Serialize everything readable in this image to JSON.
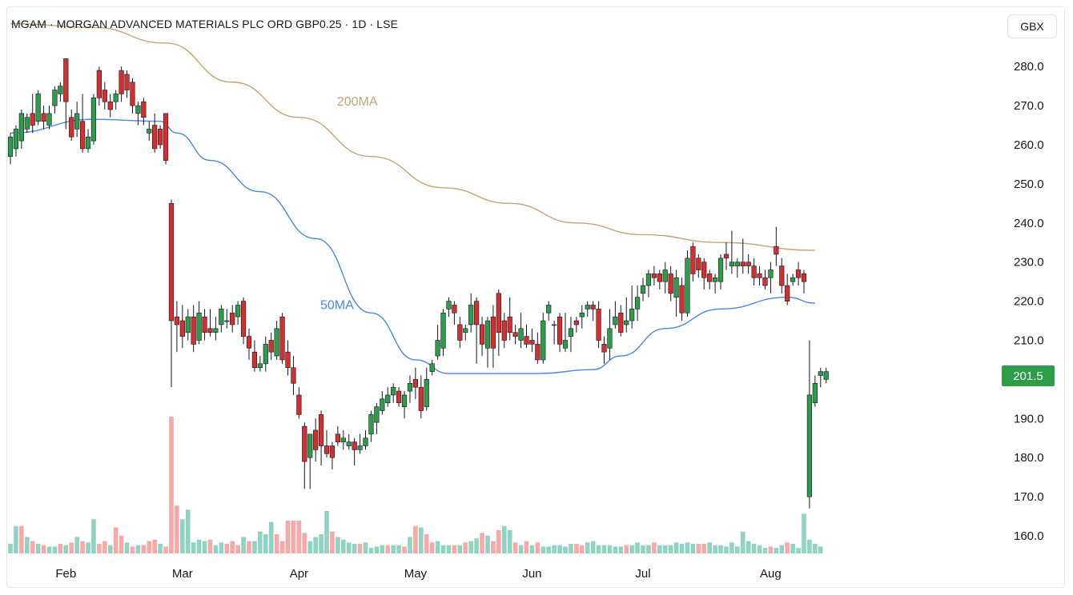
{
  "header": {
    "title": "MGAM · MORGAN ADVANCED MATERIALS PLC ORD GBP0.25 · 1D · LSE",
    "currency": "GBX",
    "last_price": "201.5"
  },
  "colors": {
    "up": "#2e9d4a",
    "down": "#d32f2f",
    "volume_up": "#8fd3c3",
    "volume_down": "#f7a9a8",
    "ma50": "#4a86e8",
    "ma200": "#c8a474"
  },
  "chart_data": {
    "type": "candlestick",
    "ylim": [
      156,
      288
    ],
    "y_ticks": [
      "160.0",
      "170.0",
      "180.0",
      "190.0",
      "200.0",
      "210.0",
      "220.0",
      "230.0",
      "240.0",
      "250.0",
      "260.0",
      "270.0",
      "280.0"
    ],
    "x_labels": [
      {
        "label": "Feb",
        "index": 10
      },
      {
        "label": "Mar",
        "index": 31
      },
      {
        "label": "Apr",
        "index": 52
      },
      {
        "label": "May",
        "index": 73
      },
      {
        "label": "Jun",
        "index": 94
      },
      {
        "label": "Jul",
        "index": 114
      },
      {
        "label": "Aug",
        "index": 137
      }
    ],
    "moving_averages": [
      {
        "name": "200MA",
        "label_index": 60,
        "points": [
          [
            0,
            291
          ],
          [
            15,
            290
          ],
          [
            28,
            286
          ],
          [
            40,
            276
          ],
          [
            52,
            267
          ],
          [
            65,
            257
          ],
          [
            78,
            249
          ],
          [
            90,
            245
          ],
          [
            102,
            240
          ],
          [
            114,
            237
          ],
          [
            128,
            235
          ],
          [
            145,
            233
          ]
        ]
      },
      {
        "name": "50MA",
        "label_index": 57,
        "points": [
          [
            0,
            263
          ],
          [
            15,
            266.5
          ],
          [
            27,
            266
          ],
          [
            30,
            263
          ],
          [
            36,
            256
          ],
          [
            45,
            248
          ],
          [
            55,
            236
          ],
          [
            65,
            217
          ],
          [
            73,
            205
          ],
          [
            79,
            201.5
          ],
          [
            87,
            201.5
          ],
          [
            95,
            201.5
          ],
          [
            105,
            202.5
          ],
          [
            110,
            206
          ],
          [
            118,
            213
          ],
          [
            128,
            218
          ],
          [
            140,
            221
          ],
          [
            145,
            219.5
          ]
        ]
      }
    ],
    "candles": [
      [
        257,
        262,
        255,
        263
      ],
      [
        259,
        264,
        257,
        265
      ],
      [
        261,
        268,
        259,
        269
      ],
      [
        264,
        267,
        263,
        268
      ],
      [
        268,
        265,
        263,
        273
      ],
      [
        266,
        273,
        265,
        274
      ],
      [
        268,
        266,
        264,
        270
      ],
      [
        265,
        268,
        264,
        270
      ],
      [
        270,
        274,
        268,
        275
      ],
      [
        273,
        275,
        271,
        276
      ],
      [
        282,
        271,
        264,
        282
      ],
      [
        267,
        262,
        261,
        269
      ],
      [
        264,
        268,
        262,
        271
      ],
      [
        266,
        259,
        258,
        273
      ],
      [
        259,
        262,
        258,
        264
      ],
      [
        261,
        272,
        260,
        273
      ],
      [
        279,
        272,
        270,
        280
      ],
      [
        274,
        271,
        269,
        276
      ],
      [
        271,
        269,
        267,
        273
      ],
      [
        271,
        273,
        269,
        274
      ],
      [
        279,
        273,
        271,
        280
      ],
      [
        278,
        274,
        272,
        279
      ],
      [
        276,
        270,
        268,
        277
      ],
      [
        268,
        270,
        265,
        271
      ],
      [
        271,
        267,
        265,
        272
      ],
      [
        263,
        264,
        261,
        266
      ],
      [
        265,
        259,
        258,
        268
      ],
      [
        264,
        260,
        259,
        265
      ],
      [
        268,
        256,
        255,
        268
      ],
      [
        245,
        215,
        198,
        246
      ],
      [
        216,
        214,
        207,
        220
      ],
      [
        215,
        211,
        208,
        219
      ],
      [
        212,
        216,
        210,
        218
      ],
      [
        216,
        209,
        207,
        219
      ],
      [
        210,
        217,
        209,
        220
      ],
      [
        216,
        212,
        210,
        218
      ],
      [
        213,
        212,
        211,
        218
      ],
      [
        212,
        213,
        210,
        216
      ],
      [
        214,
        218,
        212,
        219
      ],
      [
        215,
        215,
        213,
        218
      ],
      [
        217,
        214,
        212,
        219
      ],
      [
        216,
        219,
        214,
        220
      ],
      [
        220,
        211,
        209,
        221
      ],
      [
        211,
        208,
        205,
        213
      ],
      [
        207,
        203,
        202,
        210
      ],
      [
        203,
        204,
        202,
        206
      ],
      [
        204,
        209,
        202,
        211
      ],
      [
        210,
        207,
        205,
        212
      ],
      [
        206,
        213,
        205,
        215
      ],
      [
        216,
        205,
        204,
        217
      ],
      [
        207,
        203,
        201,
        210
      ],
      [
        203,
        199,
        196,
        206
      ],
      [
        196,
        191,
        190,
        198
      ],
      [
        188,
        179,
        172,
        189
      ],
      [
        180,
        186,
        172,
        186
      ],
      [
        187,
        182,
        179,
        190
      ],
      [
        191,
        183,
        178,
        192
      ],
      [
        183,
        181,
        180,
        187
      ],
      [
        183,
        180,
        177,
        184
      ],
      [
        186,
        184,
        183,
        188
      ],
      [
        184,
        185,
        182,
        187
      ],
      [
        183,
        184,
        182,
        186
      ],
      [
        184,
        182,
        178,
        185
      ],
      [
        182,
        183,
        181,
        186
      ],
      [
        183,
        185,
        182,
        187
      ],
      [
        186,
        191,
        184,
        192
      ],
      [
        189,
        193,
        186,
        194
      ],
      [
        192,
        195,
        191,
        197
      ],
      [
        194,
        196,
        193,
        198
      ],
      [
        196,
        198,
        194,
        199
      ],
      [
        197,
        194,
        193,
        198
      ],
      [
        193,
        196,
        190,
        197
      ],
      [
        197,
        199,
        194,
        201
      ],
      [
        200,
        198,
        195,
        203
      ],
      [
        198,
        192,
        190,
        201
      ],
      [
        193,
        200,
        192,
        203
      ],
      [
        202,
        204,
        201,
        205
      ],
      [
        206,
        210,
        205,
        214
      ],
      [
        208,
        217,
        206,
        218
      ],
      [
        218,
        220,
        216,
        221
      ],
      [
        219,
        217,
        214,
        220
      ],
      [
        214,
        210,
        208,
        216
      ],
      [
        212,
        213,
        210,
        214
      ],
      [
        214,
        219,
        212,
        222
      ],
      [
        220,
        214,
        204,
        221
      ],
      [
        214,
        209,
        206,
        216
      ],
      [
        208,
        215,
        203,
        216
      ],
      [
        216,
        208,
        203,
        219
      ],
      [
        222,
        212,
        206,
        223
      ],
      [
        215,
        210,
        208,
        217
      ],
      [
        216,
        212,
        210,
        221
      ],
      [
        212,
        211,
        209,
        214
      ],
      [
        210,
        213,
        208,
        217
      ],
      [
        211,
        209,
        208,
        214
      ],
      [
        210,
        209,
        207,
        213
      ],
      [
        209,
        205,
        204,
        212
      ],
      [
        205,
        215,
        204,
        217
      ],
      [
        217,
        219,
        215,
        220
      ],
      [
        214,
        214,
        209,
        215
      ],
      [
        216,
        209,
        207,
        217
      ],
      [
        208,
        210,
        207,
        217
      ],
      [
        211,
        213,
        207,
        216
      ],
      [
        215,
        214,
        212,
        216
      ],
      [
        216,
        217,
        213,
        219
      ],
      [
        218,
        219,
        216,
        220
      ],
      [
        219,
        218,
        215,
        220
      ],
      [
        218,
        210,
        208,
        220
      ],
      [
        209,
        207,
        204,
        211
      ],
      [
        208,
        213,
        205,
        218
      ],
      [
        214,
        216,
        213,
        220
      ],
      [
        217,
        212,
        211,
        219
      ],
      [
        214,
        215,
        212,
        221
      ],
      [
        215,
        218,
        213,
        224
      ],
      [
        218,
        221,
        215,
        224
      ],
      [
        222,
        224,
        220,
        226
      ],
      [
        224,
        227,
        221,
        228
      ],
      [
        227,
        226,
        224,
        229
      ],
      [
        227,
        225,
        223,
        228
      ],
      [
        225,
        228,
        222,
        230
      ],
      [
        227,
        222,
        220,
        229
      ],
      [
        221,
        226,
        216,
        228
      ],
      [
        224,
        217,
        215,
        226
      ],
      [
        217,
        231,
        216,
        233
      ],
      [
        234,
        227,
        225,
        235
      ],
      [
        231,
        228,
        226,
        232
      ],
      [
        230,
        226,
        223,
        231
      ],
      [
        227,
        225,
        223,
        228
      ],
      [
        225,
        226,
        222,
        227
      ],
      [
        225,
        231,
        223,
        232
      ],
      [
        232,
        231,
        228,
        235
      ],
      [
        229,
        230,
        227,
        238
      ],
      [
        229,
        230,
        226,
        231
      ],
      [
        230,
        229,
        227,
        236
      ],
      [
        230,
        229,
        227,
        232
      ],
      [
        229,
        226,
        224,
        231
      ],
      [
        227,
        226,
        224,
        229
      ],
      [
        226,
        224,
        223,
        228
      ],
      [
        226,
        228,
        222,
        230
      ],
      [
        234,
        232,
        229,
        239
      ],
      [
        229,
        224,
        222,
        231
      ],
      [
        224,
        220,
        219,
        227
      ],
      [
        225,
        226,
        224,
        227
      ],
      [
        228,
        226,
        224,
        230
      ],
      [
        227,
        225,
        222,
        228
      ],
      [
        170,
        196,
        167,
        210
      ],
      [
        194,
        199,
        193,
        201
      ],
      [
        201,
        202,
        198,
        203
      ],
      [
        200,
        202,
        199,
        203
      ]
    ],
    "volume_scale": [
      0,
      100
    ],
    "volumes": [
      [
        7,
        1
      ],
      [
        20,
        1
      ],
      [
        20,
        0
      ],
      [
        12,
        1
      ],
      [
        9,
        0
      ],
      [
        7,
        1
      ],
      [
        6,
        0
      ],
      [
        5,
        1
      ],
      [
        5,
        1
      ],
      [
        7,
        0
      ],
      [
        6,
        1
      ],
      [
        8,
        0
      ],
      [
        12,
        1
      ],
      [
        9,
        0
      ],
      [
        8,
        1
      ],
      [
        25,
        1
      ],
      [
        7,
        0
      ],
      [
        9,
        0
      ],
      [
        6,
        1
      ],
      [
        19,
        0
      ],
      [
        13,
        0
      ],
      [
        8,
        1
      ],
      [
        5,
        0
      ],
      [
        6,
        1
      ],
      [
        6,
        0
      ],
      [
        9,
        0
      ],
      [
        10,
        0
      ],
      [
        7,
        1
      ],
      [
        5,
        0
      ],
      [
        100,
        0
      ],
      [
        35,
        0
      ],
      [
        25,
        1
      ],
      [
        32,
        1
      ],
      [
        8,
        1
      ],
      [
        10,
        1
      ],
      [
        9,
        1
      ],
      [
        10,
        0
      ],
      [
        6,
        1
      ],
      [
        8,
        1
      ],
      [
        7,
        0
      ],
      [
        9,
        0
      ],
      [
        6,
        0
      ],
      [
        12,
        1
      ],
      [
        9,
        0
      ],
      [
        9,
        1
      ],
      [
        16,
        1
      ],
      [
        14,
        1
      ],
      [
        23,
        1
      ],
      [
        14,
        0
      ],
      [
        9,
        0
      ],
      [
        24,
        0
      ],
      [
        24,
        0
      ],
      [
        24,
        0
      ],
      [
        15,
        0
      ],
      [
        9,
        1
      ],
      [
        12,
        1
      ],
      [
        14,
        1
      ],
      [
        31,
        1
      ],
      [
        16,
        0
      ],
      [
        12,
        1
      ],
      [
        10,
        1
      ],
      [
        8,
        1
      ],
      [
        7,
        1
      ],
      [
        7,
        0
      ],
      [
        8,
        1
      ],
      [
        4,
        1
      ],
      [
        5,
        1
      ],
      [
        6,
        1
      ],
      [
        6,
        0
      ],
      [
        6,
        1
      ],
      [
        6,
        1
      ],
      [
        5,
        0
      ],
      [
        12,
        1
      ],
      [
        20,
        0
      ],
      [
        19,
        1
      ],
      [
        14,
        0
      ],
      [
        8,
        0
      ],
      [
        9,
        1
      ],
      [
        6,
        1
      ],
      [
        6,
        1
      ],
      [
        6,
        0
      ],
      [
        6,
        1
      ],
      [
        8,
        0
      ],
      [
        9,
        1
      ],
      [
        11,
        1
      ],
      [
        15,
        0
      ],
      [
        13,
        1
      ],
      [
        9,
        0
      ],
      [
        17,
        0
      ],
      [
        20,
        1
      ],
      [
        17,
        1
      ],
      [
        8,
        0
      ],
      [
        6,
        1
      ],
      [
        9,
        0
      ],
      [
        6,
        1
      ],
      [
        8,
        0
      ],
      [
        5,
        1
      ],
      [
        5,
        1
      ],
      [
        6,
        1
      ],
      [
        6,
        1
      ],
      [
        5,
        1
      ],
      [
        7,
        1
      ],
      [
        7,
        0
      ],
      [
        6,
        0
      ],
      [
        8,
        1
      ],
      [
        9,
        1
      ],
      [
        6,
        1
      ],
      [
        6,
        1
      ],
      [
        6,
        1
      ],
      [
        5,
        1
      ],
      [
        5,
        1
      ],
      [
        6,
        0
      ],
      [
        6,
        1
      ],
      [
        8,
        1
      ],
      [
        6,
        1
      ],
      [
        6,
        1
      ],
      [
        8,
        0
      ],
      [
        6,
        1
      ],
      [
        6,
        1
      ],
      [
        6,
        1
      ],
      [
        8,
        1
      ],
      [
        7,
        1
      ],
      [
        8,
        1
      ],
      [
        7,
        1
      ],
      [
        7,
        0
      ],
      [
        7,
        0
      ],
      [
        8,
        1
      ],
      [
        6,
        1
      ],
      [
        6,
        1
      ],
      [
        5,
        1
      ],
      [
        8,
        1
      ],
      [
        5,
        1
      ],
      [
        16,
        1
      ],
      [
        9,
        1
      ],
      [
        7,
        1
      ],
      [
        6,
        1
      ],
      [
        4,
        1
      ],
      [
        5,
        0
      ],
      [
        4,
        1
      ],
      [
        6,
        1
      ],
      [
        8,
        0
      ],
      [
        7,
        1
      ],
      [
        4,
        1
      ],
      [
        29,
        1
      ],
      [
        10,
        1
      ],
      [
        7,
        1
      ],
      [
        5,
        1
      ]
    ]
  }
}
